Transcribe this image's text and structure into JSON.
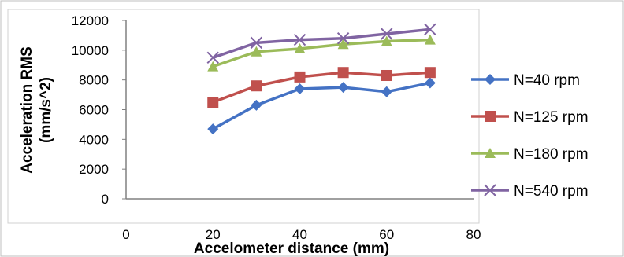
{
  "chart_data": {
    "type": "line",
    "title": "",
    "xlabel": "Accelometer distance (mm)",
    "ylabel": "Acceleration RMS (mm/s^2)",
    "xlim": [
      0,
      80
    ],
    "ylim": [
      0,
      12000
    ],
    "x_ticks": [
      0,
      20,
      40,
      60,
      80
    ],
    "y_ticks": [
      0,
      2000,
      4000,
      6000,
      8000,
      10000,
      12000
    ],
    "grid": false,
    "legend_position": "right",
    "x": [
      20,
      30,
      40,
      50,
      60,
      70
    ],
    "series": [
      {
        "name": "N=40 rpm",
        "marker": "diamond",
        "color": "#4472C4",
        "values": [
          4700,
          6300,
          7400,
          7500,
          7200,
          7800
        ]
      },
      {
        "name": "N=125 rpm",
        "marker": "square",
        "color": "#C0504D",
        "values": [
          6500,
          7600,
          8200,
          8500,
          8300,
          8500
        ]
      },
      {
        "name": "N=180 rpm",
        "marker": "triangle",
        "color": "#9BBB59",
        "values": [
          8900,
          9900,
          10100,
          10400,
          10600,
          10700
        ]
      },
      {
        "name": "N=540 rpm",
        "marker": "x",
        "color": "#8064A2",
        "values": [
          9500,
          10500,
          10700,
          10800,
          11100,
          11400
        ]
      }
    ]
  }
}
